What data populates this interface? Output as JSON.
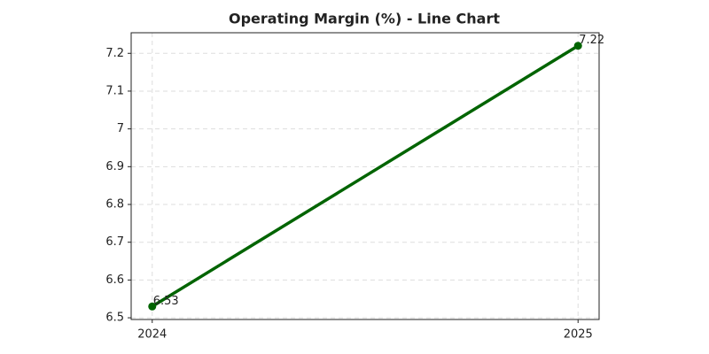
{
  "chart_data": {
    "type": "line",
    "title": "Operating Margin (%) - Line Chart",
    "categories": [
      "2024",
      "2025"
    ],
    "series": [
      {
        "color": "#006400",
        "values": [
          6.53,
          7.22
        ]
      }
    ],
    "ylim": [
      6.4955,
      7.2545
    ],
    "yticks": [
      6.5,
      6.6,
      6.7,
      6.8,
      6.9,
      7.0,
      7.1,
      7.2
    ],
    "grid": true
  }
}
